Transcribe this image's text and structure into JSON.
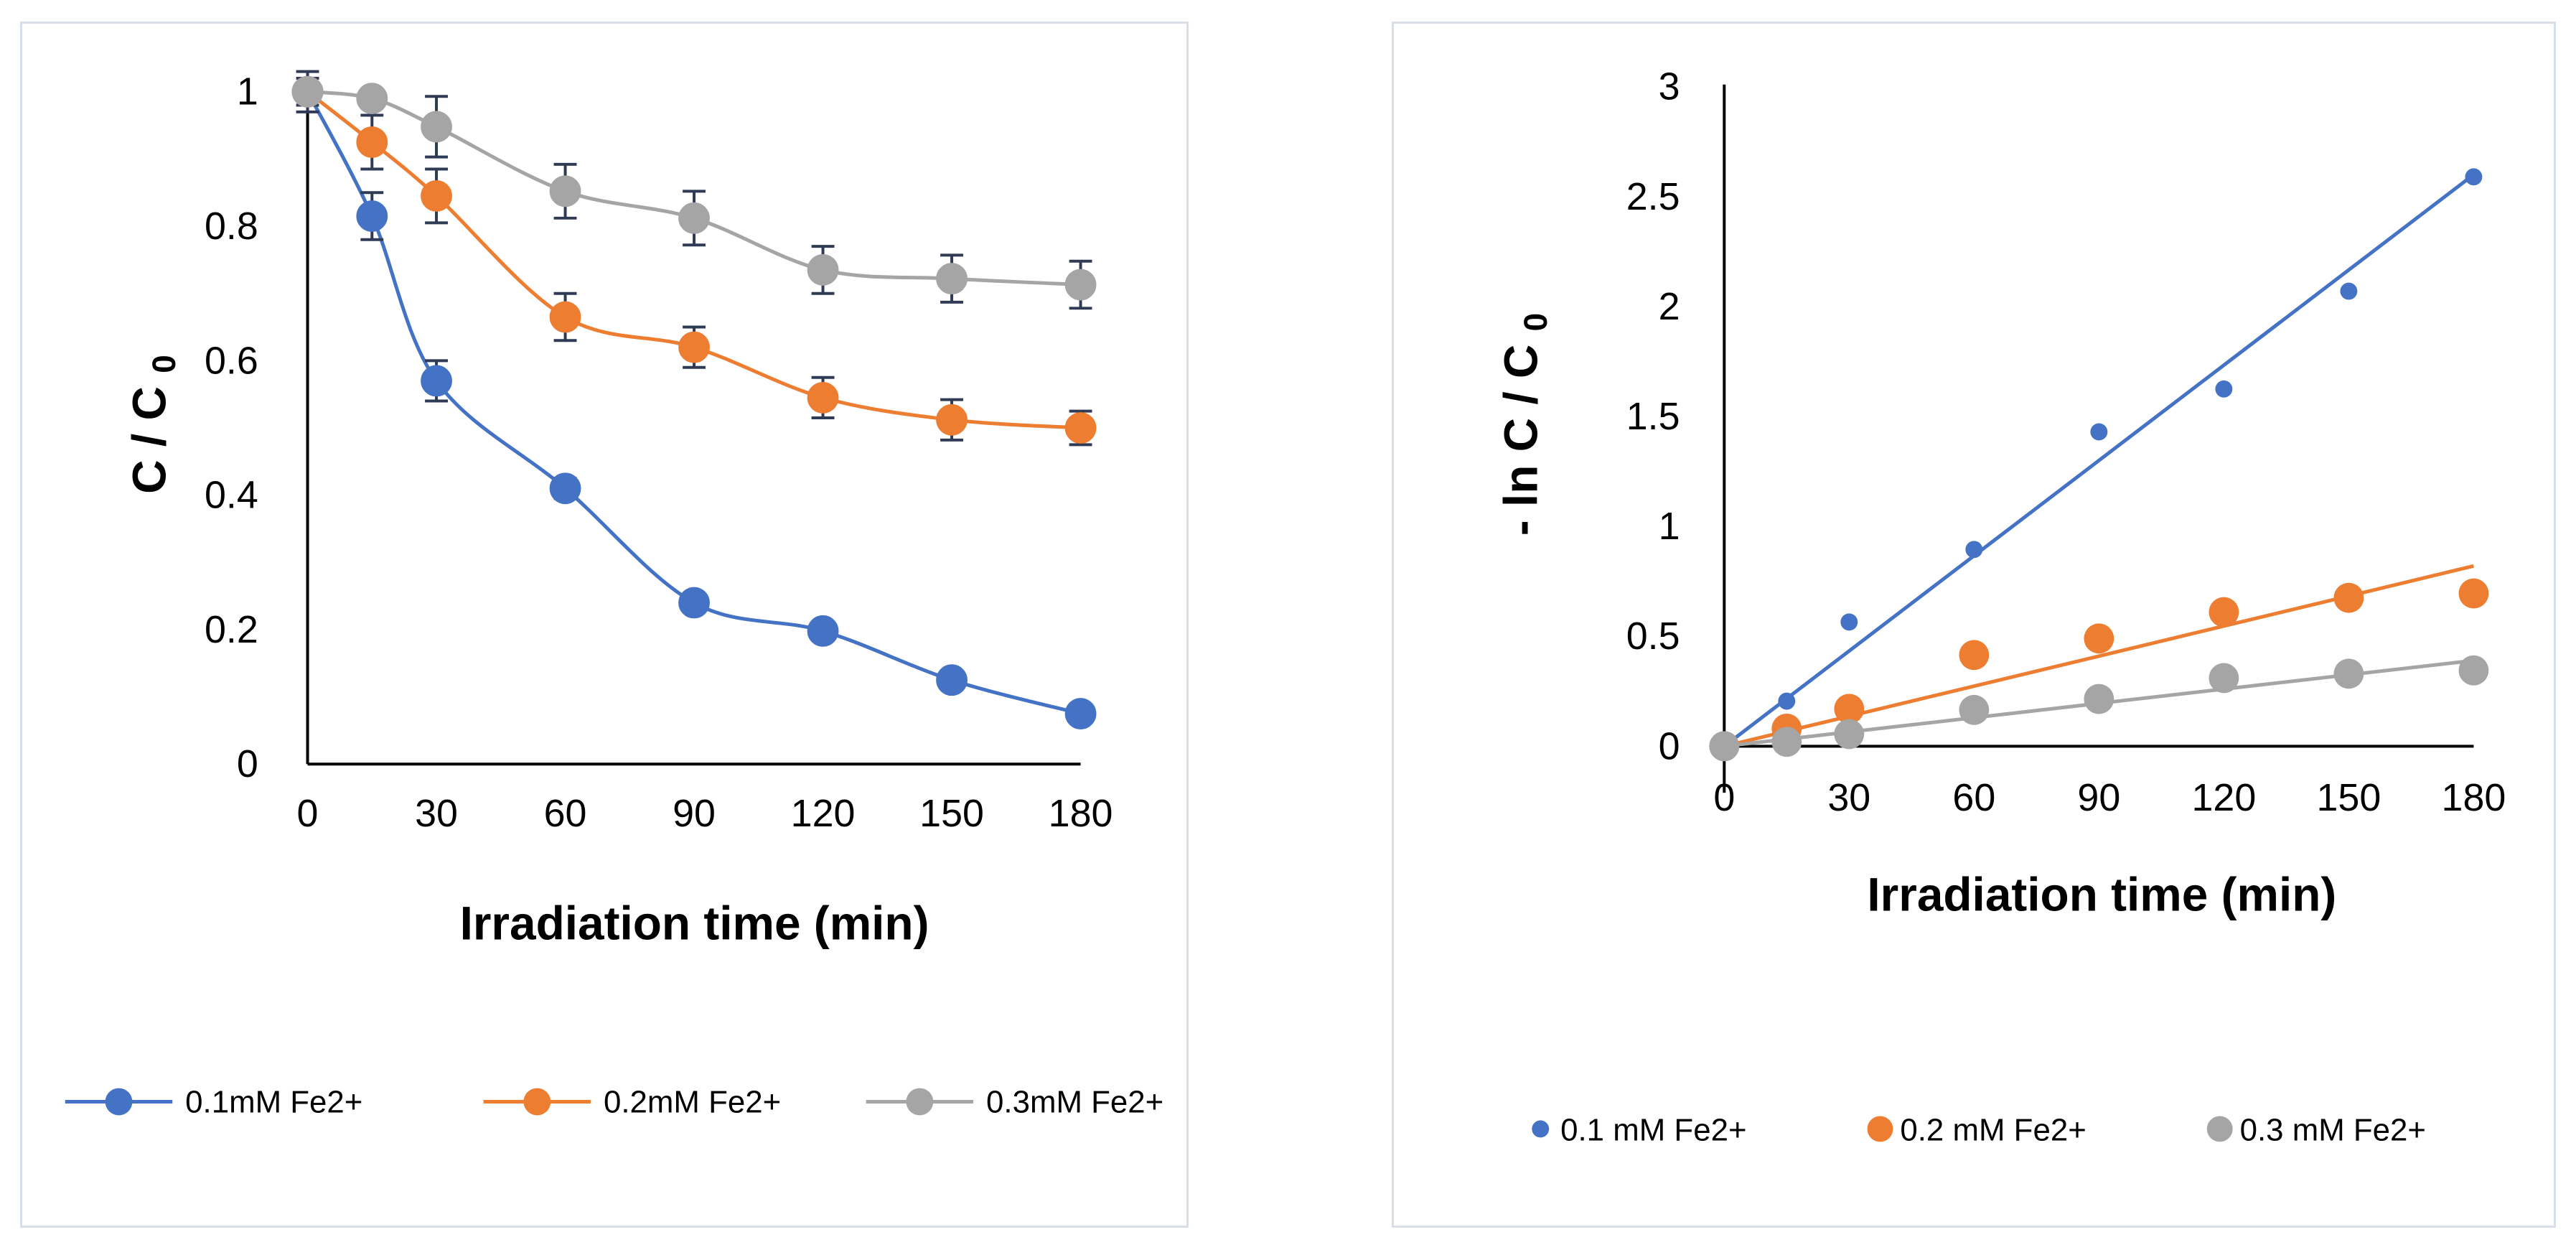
{
  "chart_data": [
    {
      "type": "line",
      "smooth": true,
      "error_bars": true,
      "ylabel_main": "C / C",
      "ylabel_sub": "0",
      "xlabel": "Irradiation time  (min)",
      "x_ticks": [
        "0",
        "30",
        "60",
        "90",
        "120",
        "150",
        "180"
      ],
      "y_ticks": [
        "0",
        "0.2",
        "0.4",
        "0.6",
        "0.8",
        "1"
      ],
      "xlim": [
        0,
        180
      ],
      "ylim": [
        0,
        1
      ],
      "legend_position": "bottom",
      "series": [
        {
          "name": "0.1mM Fe2+",
          "color": "#4472c4",
          "x": [
            0,
            15,
            30,
            60,
            90,
            120,
            150,
            180
          ],
          "y": [
            1.0,
            0.815,
            0.57,
            0.41,
            0.24,
            0.198,
            0.125,
            0.075
          ],
          "err": [
            0.03,
            0.035,
            0.03,
            0.015,
            0.012,
            0.01,
            0.01,
            0.008
          ]
        },
        {
          "name": "0.2mM Fe2+",
          "color": "#ed7d31",
          "x": [
            0,
            15,
            30,
            60,
            90,
            120,
            150,
            180
          ],
          "y": [
            1.0,
            0.925,
            0.845,
            0.665,
            0.62,
            0.545,
            0.512,
            0.5
          ],
          "err": [
            0.02,
            0.04,
            0.04,
            0.035,
            0.03,
            0.03,
            0.03,
            0.025
          ]
        },
        {
          "name": "0.3mM Fe2+",
          "color": "#a5a5a5",
          "x": [
            0,
            15,
            30,
            60,
            90,
            120,
            150,
            180
          ],
          "y": [
            1.0,
            0.99,
            0.948,
            0.852,
            0.812,
            0.735,
            0.722,
            0.713
          ],
          "err": [
            0.01,
            0.01,
            0.045,
            0.04,
            0.04,
            0.035,
            0.035,
            0.035
          ]
        }
      ]
    },
    {
      "type": "scatter",
      "trendlines": true,
      "ylabel_main": "- ln C / C",
      "ylabel_sub": "0",
      "xlabel": "Irradiation time (min)",
      "x_ticks": [
        "0",
        "30",
        "60",
        "90",
        "120",
        "150",
        "180"
      ],
      "y_ticks": [
        "0",
        "0.5",
        "1",
        "1.5",
        "2",
        "2.5",
        "3"
      ],
      "xlim": [
        0,
        180
      ],
      "ylim": [
        0,
        3
      ],
      "legend_position": "bottom",
      "series": [
        {
          "name": "0.1 mM Fe2+",
          "color": "#4472c4",
          "marker": "small",
          "x": [
            0,
            15,
            30,
            60,
            90,
            120,
            150,
            180
          ],
          "y": [
            0.0,
            0.205,
            0.565,
            0.895,
            1.43,
            1.625,
            2.07,
            2.59
          ],
          "trend": [
            0.0,
            2.6
          ]
        },
        {
          "name": "0.2 mM Fe2+",
          "color": "#ed7d31",
          "marker": "large",
          "x": [
            0,
            15,
            30,
            60,
            90,
            120,
            150,
            180
          ],
          "y": [
            0.0,
            0.08,
            0.17,
            0.415,
            0.49,
            0.61,
            0.675,
            0.695
          ],
          "trend": [
            0.0,
            0.82
          ]
        },
        {
          "name": "0.3 mM Fe2+",
          "color": "#a5a5a5",
          "marker": "large",
          "x": [
            0,
            15,
            30,
            60,
            90,
            120,
            150,
            180
          ],
          "y": [
            0.0,
            0.02,
            0.055,
            0.165,
            0.215,
            0.31,
            0.33,
            0.345
          ],
          "trend": [
            0.0,
            0.39
          ]
        }
      ]
    }
  ]
}
